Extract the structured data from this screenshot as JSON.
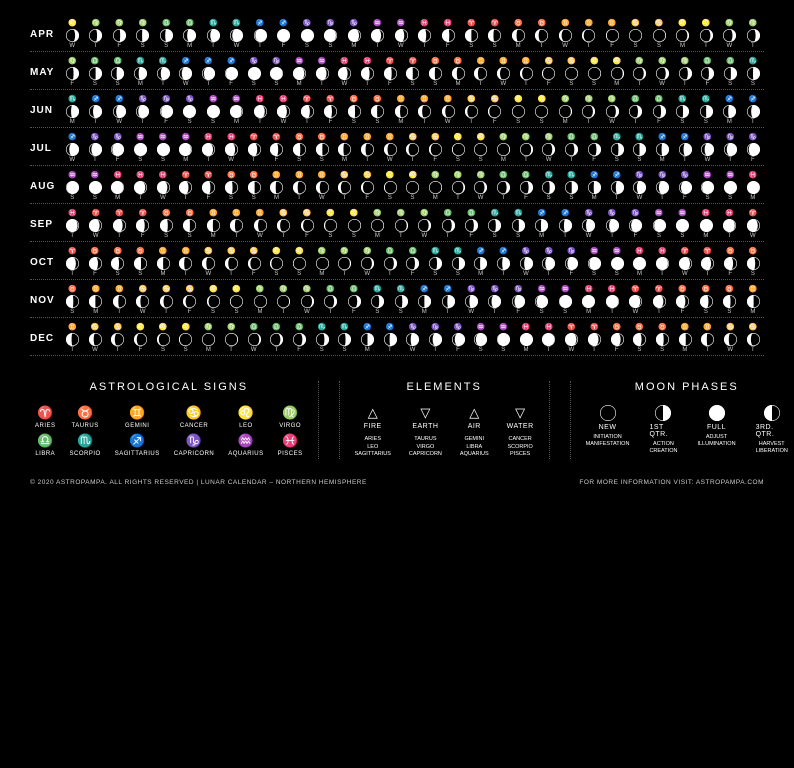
{
  "colors": {
    "bg": "#000000",
    "fg": "#ffffff",
    "muted": "#cccccc",
    "line": "#555555"
  },
  "zodiac_symbols": {
    "aries": "♈",
    "taurus": "♉",
    "gemini": "♊",
    "cancer": "♋",
    "leo": "♌",
    "virgo": "♍",
    "libra": "♎",
    "scorpio": "♏",
    "sagittarius": "♐",
    "capricorn": "♑",
    "aquarius": "♒",
    "pisces": "♓"
  },
  "element_symbols": {
    "fire": "△",
    "earth": "▽",
    "air": "△",
    "water": "▽"
  },
  "months": [
    {
      "label": "APR",
      "startDow": 3,
      "signs": [
        "leo",
        "virgo",
        "virgo",
        "virgo",
        "libra",
        "libra",
        "scorpio",
        "scorpio",
        "sagittarius",
        "sagittarius",
        "capricorn",
        "capricorn",
        "capricorn",
        "aquarius",
        "aquarius",
        "pisces",
        "pisces",
        "aries",
        "aries",
        "taurus",
        "taurus",
        "gemini",
        "gemini",
        "gemini",
        "cancer",
        "cancer",
        "leo",
        "leo",
        "virgo",
        "virgo"
      ],
      "phases": [
        0.3,
        0.38,
        0.45,
        0.53,
        0.6,
        0.68,
        0.75,
        0.83,
        0.9,
        0.97,
        0.99,
        0.92,
        0.85,
        0.78,
        0.71,
        0.63,
        0.56,
        0.49,
        0.42,
        0.35,
        0.28,
        0.2,
        0.13,
        0.06,
        0.01,
        0.05,
        0.12,
        0.2,
        0.27,
        0.34
      ]
    },
    {
      "label": "MAY",
      "startDow": 5,
      "signs": [
        "virgo",
        "libra",
        "libra",
        "scorpio",
        "scorpio",
        "sagittarius",
        "sagittarius",
        "sagittarius",
        "capricorn",
        "capricorn",
        "aquarius",
        "aquarius",
        "pisces",
        "pisces",
        "aries",
        "aries",
        "taurus",
        "taurus",
        "gemini",
        "gemini",
        "gemini",
        "cancer",
        "cancer",
        "leo",
        "leo",
        "virgo",
        "virgo",
        "virgo",
        "libra",
        "libra",
        "scorpio"
      ],
      "phases": [
        0.42,
        0.49,
        0.57,
        0.64,
        0.71,
        0.79,
        0.86,
        0.93,
        0.99,
        0.95,
        0.88,
        0.81,
        0.74,
        0.66,
        0.59,
        0.52,
        0.45,
        0.37,
        0.3,
        0.23,
        0.16,
        0.08,
        0.02,
        0.03,
        0.1,
        0.17,
        0.25,
        0.32,
        0.39,
        0.47,
        0.54
      ]
    },
    {
      "label": "JUN",
      "startDow": 1,
      "signs": [
        "scorpio",
        "sagittarius",
        "sagittarius",
        "capricorn",
        "capricorn",
        "capricorn",
        "aquarius",
        "aquarius",
        "pisces",
        "pisces",
        "aries",
        "aries",
        "taurus",
        "taurus",
        "gemini",
        "gemini",
        "gemini",
        "cancer",
        "cancer",
        "leo",
        "leo",
        "virgo",
        "virgo",
        "virgo",
        "libra",
        "libra",
        "scorpio",
        "scorpio",
        "sagittarius",
        "sagittarius"
      ],
      "phases": [
        0.61,
        0.69,
        0.76,
        0.83,
        0.91,
        0.98,
        0.97,
        0.9,
        0.83,
        0.76,
        0.68,
        0.61,
        0.54,
        0.47,
        0.39,
        0.32,
        0.25,
        0.18,
        0.1,
        0.03,
        0.02,
        0.09,
        0.16,
        0.24,
        0.31,
        0.38,
        0.46,
        0.53,
        0.6,
        0.68
      ]
    },
    {
      "label": "JUL",
      "startDow": 3,
      "signs": [
        "sagittarius",
        "capricorn",
        "capricorn",
        "aquarius",
        "aquarius",
        "aquarius",
        "pisces",
        "pisces",
        "aries",
        "aries",
        "taurus",
        "taurus",
        "gemini",
        "gemini",
        "gemini",
        "cancer",
        "cancer",
        "leo",
        "leo",
        "virgo",
        "virgo",
        "virgo",
        "libra",
        "libra",
        "scorpio",
        "scorpio",
        "sagittarius",
        "sagittarius",
        "capricorn",
        "capricorn",
        "capricorn"
      ],
      "phases": [
        0.75,
        0.82,
        0.9,
        0.97,
        0.99,
        0.92,
        0.85,
        0.78,
        0.71,
        0.63,
        0.56,
        0.49,
        0.42,
        0.35,
        0.27,
        0.2,
        0.13,
        0.06,
        0.01,
        0.06,
        0.14,
        0.21,
        0.28,
        0.35,
        0.43,
        0.5,
        0.57,
        0.65,
        0.72,
        0.79,
        0.87
      ]
    },
    {
      "label": "AUG",
      "startDow": 6,
      "signs": [
        "aquarius",
        "aquarius",
        "pisces",
        "pisces",
        "pisces",
        "aries",
        "aries",
        "taurus",
        "taurus",
        "gemini",
        "gemini",
        "gemini",
        "cancer",
        "cancer",
        "leo",
        "leo",
        "virgo",
        "virgo",
        "virgo",
        "libra",
        "libra",
        "scorpio",
        "scorpio",
        "sagittarius",
        "sagittarius",
        "capricorn",
        "capricorn",
        "capricorn",
        "aquarius",
        "aquarius",
        "pisces"
      ],
      "phases": [
        0.94,
        0.99,
        0.94,
        0.87,
        0.8,
        0.73,
        0.65,
        0.58,
        0.51,
        0.44,
        0.36,
        0.29,
        0.22,
        0.15,
        0.07,
        0.01,
        0.04,
        0.12,
        0.19,
        0.26,
        0.34,
        0.41,
        0.48,
        0.56,
        0.63,
        0.7,
        0.78,
        0.85,
        0.92,
        0.98,
        0.96
      ]
    },
    {
      "label": "SEP",
      "startDow": 2,
      "signs": [
        "pisces",
        "aries",
        "aries",
        "aries",
        "taurus",
        "taurus",
        "gemini",
        "gemini",
        "gemini",
        "cancer",
        "cancer",
        "leo",
        "leo",
        "virgo",
        "virgo",
        "virgo",
        "libra",
        "libra",
        "scorpio",
        "scorpio",
        "sagittarius",
        "sagittarius",
        "capricorn",
        "capricorn",
        "capricorn",
        "aquarius",
        "aquarius",
        "pisces",
        "pisces",
        "aries"
      ],
      "phases": [
        0.89,
        0.82,
        0.74,
        0.67,
        0.6,
        0.53,
        0.45,
        0.38,
        0.31,
        0.24,
        0.16,
        0.09,
        0.02,
        0.03,
        0.1,
        0.18,
        0.25,
        0.32,
        0.4,
        0.47,
        0.54,
        0.62,
        0.69,
        0.76,
        0.84,
        0.91,
        0.98,
        0.98,
        0.91,
        0.83
      ]
    },
    {
      "label": "OCT",
      "startDow": 4,
      "signs": [
        "aries",
        "taurus",
        "taurus",
        "taurus",
        "gemini",
        "gemini",
        "cancer",
        "cancer",
        "cancer",
        "leo",
        "leo",
        "virgo",
        "virgo",
        "virgo",
        "libra",
        "libra",
        "scorpio",
        "scorpio",
        "sagittarius",
        "sagittarius",
        "capricorn",
        "capricorn",
        "capricorn",
        "aquarius",
        "aquarius",
        "pisces",
        "pisces",
        "aries",
        "aries",
        "taurus",
        "taurus"
      ],
      "phases": [
        0.76,
        0.69,
        0.62,
        0.54,
        0.47,
        0.4,
        0.33,
        0.25,
        0.18,
        0.11,
        0.04,
        0.02,
        0.09,
        0.16,
        0.24,
        0.31,
        0.38,
        0.46,
        0.53,
        0.6,
        0.68,
        0.75,
        0.82,
        0.9,
        0.97,
        0.99,
        0.92,
        0.85,
        0.78,
        0.7,
        0.63
      ]
    },
    {
      "label": "NOV",
      "startDow": 0,
      "signs": [
        "taurus",
        "gemini",
        "gemini",
        "cancer",
        "cancer",
        "cancer",
        "leo",
        "leo",
        "virgo",
        "virgo",
        "virgo",
        "libra",
        "libra",
        "scorpio",
        "scorpio",
        "sagittarius",
        "sagittarius",
        "capricorn",
        "capricorn",
        "capricorn",
        "aquarius",
        "aquarius",
        "pisces",
        "pisces",
        "aries",
        "aries",
        "taurus",
        "taurus",
        "taurus",
        "gemini"
      ],
      "phases": [
        0.56,
        0.49,
        0.41,
        0.34,
        0.27,
        0.2,
        0.12,
        0.05,
        0.01,
        0.07,
        0.15,
        0.22,
        0.29,
        0.37,
        0.44,
        0.51,
        0.59,
        0.66,
        0.73,
        0.81,
        0.88,
        0.95,
        0.99,
        0.94,
        0.87,
        0.8,
        0.72,
        0.65,
        0.58,
        0.51
      ]
    },
    {
      "label": "DEC",
      "startDow": 2,
      "signs": [
        "gemini",
        "cancer",
        "cancer",
        "leo",
        "leo",
        "leo",
        "virgo",
        "virgo",
        "libra",
        "libra",
        "libra",
        "scorpio",
        "scorpio",
        "sagittarius",
        "sagittarius",
        "capricorn",
        "capricorn",
        "capricorn",
        "aquarius",
        "aquarius",
        "pisces",
        "pisces",
        "aries",
        "aries",
        "taurus",
        "taurus",
        "taurus",
        "gemini",
        "gemini",
        "cancer",
        "cancer"
      ],
      "phases": [
        0.43,
        0.36,
        0.29,
        0.21,
        0.14,
        0.07,
        0.01,
        0.06,
        0.13,
        0.2,
        0.28,
        0.35,
        0.42,
        0.5,
        0.57,
        0.64,
        0.72,
        0.79,
        0.86,
        0.94,
        0.99,
        0.95,
        0.88,
        0.81,
        0.74,
        0.66,
        0.59,
        0.52,
        0.45,
        0.37,
        0.3
      ]
    }
  ],
  "dow_letters": [
    "S",
    "M",
    "T",
    "W",
    "T",
    "F",
    "S"
  ],
  "legend": {
    "signs": {
      "title": "ASTROLOGICAL SIGNS",
      "items": [
        {
          "sym": "aries",
          "name": "ARIES"
        },
        {
          "sym": "taurus",
          "name": "TAURUS"
        },
        {
          "sym": "gemini",
          "name": "GEMINI"
        },
        {
          "sym": "cancer",
          "name": "CANCER"
        },
        {
          "sym": "leo",
          "name": "LEO"
        },
        {
          "sym": "virgo",
          "name": "VIRGO"
        },
        {
          "sym": "libra",
          "name": "LIBRA"
        },
        {
          "sym": "scorpio",
          "name": "SCORPIO"
        },
        {
          "sym": "sagittarius",
          "name": "SAGITTARIUS"
        },
        {
          "sym": "capricorn",
          "name": "CAPRICORN"
        },
        {
          "sym": "aquarius",
          "name": "AQUARIUS"
        },
        {
          "sym": "pisces",
          "name": "PISCES"
        }
      ]
    },
    "elements": {
      "title": "ELEMENTS",
      "items": [
        {
          "sym": "fire",
          "name": "FIRE",
          "signs": "ARIES\nLEO\nSAGITTARIUS"
        },
        {
          "sym": "earth",
          "name": "EARTH",
          "signs": "TAURUS\nVIRGO\nCAPRICORN"
        },
        {
          "sym": "air",
          "name": "AIR",
          "signs": "GEMINI\nLIBRA\nAQUARIUS"
        },
        {
          "sym": "water",
          "name": "WATER",
          "signs": "CANCER\nSCORPIO\nPISCES"
        }
      ]
    },
    "phases": {
      "title": "MOON PHASES",
      "items": [
        {
          "phase": 0.0,
          "waxing": true,
          "name": "NEW",
          "words": "INITIATION\nMANIFESTATION"
        },
        {
          "phase": 0.5,
          "waxing": true,
          "name": "1ST QTR.",
          "words": "ACTION\nCREATION"
        },
        {
          "phase": 1.0,
          "waxing": true,
          "name": "FULL",
          "words": "ADJUST\nILLUMINATION"
        },
        {
          "phase": 0.5,
          "waxing": false,
          "name": "3RD. QTR.",
          "words": "HARVEST\nLIBERATION"
        }
      ]
    }
  },
  "footer": {
    "left": "© 2020 ASTROPAMPA. ALL RIGHTS RESERVED  |  LUNAR CALENDAR – NORTHERN HEMISPHERE",
    "right": "FOR MORE INFORMATION VISIT: ASTROPAMPA.COM"
  }
}
